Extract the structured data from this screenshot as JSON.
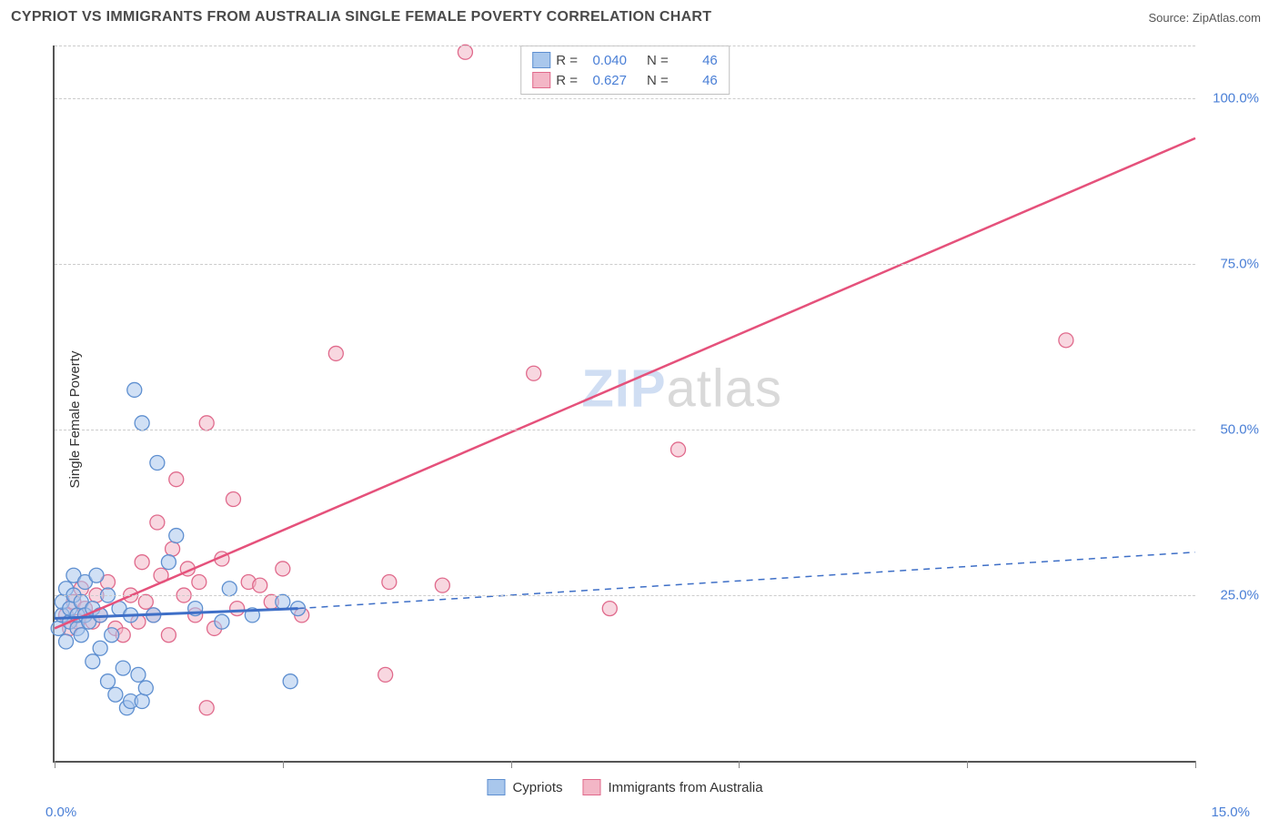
{
  "header": {
    "title": "CYPRIOT VS IMMIGRANTS FROM AUSTRALIA SINGLE FEMALE POVERTY CORRELATION CHART",
    "source_prefix": "Source: ",
    "source_name": "ZipAtlas.com"
  },
  "ylabel": "Single Female Poverty",
  "watermark": {
    "zip": "ZIP",
    "atlas": "atlas"
  },
  "axes": {
    "xlim": [
      0,
      15
    ],
    "ylim": [
      0,
      108
    ],
    "x_ticks": [
      0,
      3,
      6,
      9,
      12,
      15
    ],
    "x_tick_labels": {
      "0": "0.0%",
      "15": "15.0%"
    },
    "y_gridlines": [
      25,
      50,
      75,
      100
    ],
    "y_tick_labels": {
      "25": "25.0%",
      "50": "50.0%",
      "75": "75.0%",
      "100": "100.0%"
    },
    "grid_color": "#cccccc",
    "axis_color": "#555555"
  },
  "series": {
    "cypriots": {
      "label": "Cypriots",
      "fill": "#a9c7ec",
      "stroke": "#5e8fd0",
      "fill_opacity": 0.55,
      "line_color": "#3e6fc7",
      "marker_radius": 8,
      "r_value": "0.040",
      "n_value": "46",
      "trend": {
        "x1": 0,
        "y1": 21.5,
        "x2": 3.2,
        "y2": 23.0,
        "dash_x2": 15,
        "dash_y2": 31.5
      },
      "points": [
        [
          0.05,
          20
        ],
        [
          0.1,
          22
        ],
        [
          0.1,
          24
        ],
        [
          0.15,
          18
        ],
        [
          0.15,
          26
        ],
        [
          0.2,
          21
        ],
        [
          0.2,
          23
        ],
        [
          0.25,
          28
        ],
        [
          0.25,
          25
        ],
        [
          0.3,
          20
        ],
        [
          0.3,
          22
        ],
        [
          0.35,
          19
        ],
        [
          0.35,
          24
        ],
        [
          0.4,
          27
        ],
        [
          0.4,
          22
        ],
        [
          0.45,
          21
        ],
        [
          0.5,
          15
        ],
        [
          0.5,
          23
        ],
        [
          0.55,
          28
        ],
        [
          0.6,
          17
        ],
        [
          0.6,
          22
        ],
        [
          0.7,
          12
        ],
        [
          0.7,
          25
        ],
        [
          0.75,
          19
        ],
        [
          0.8,
          10
        ],
        [
          0.85,
          23
        ],
        [
          0.9,
          14
        ],
        [
          0.95,
          8
        ],
        [
          1.0,
          22
        ],
        [
          1.0,
          9
        ],
        [
          1.05,
          56
        ],
        [
          1.1,
          13
        ],
        [
          1.15,
          9
        ],
        [
          1.15,
          51
        ],
        [
          1.2,
          11
        ],
        [
          1.3,
          22
        ],
        [
          1.35,
          45
        ],
        [
          1.5,
          30
        ],
        [
          1.6,
          34
        ],
        [
          1.85,
          23
        ],
        [
          2.2,
          21
        ],
        [
          2.3,
          26
        ],
        [
          2.6,
          22
        ],
        [
          3.0,
          24
        ],
        [
          3.1,
          12
        ],
        [
          3.2,
          23
        ]
      ]
    },
    "immigrants": {
      "label": "Immigrants from Australia",
      "fill": "#f3b6c6",
      "stroke": "#e06a8c",
      "fill_opacity": 0.55,
      "line_color": "#e5517b",
      "marker_radius": 8,
      "r_value": "0.627",
      "n_value": "46",
      "trend": {
        "x1": 0,
        "y1": 20,
        "x2": 15,
        "y2": 94
      },
      "points": [
        [
          0.15,
          22
        ],
        [
          0.2,
          20
        ],
        [
          0.25,
          24
        ],
        [
          0.3,
          21
        ],
        [
          0.35,
          26
        ],
        [
          0.4,
          23
        ],
        [
          0.5,
          21
        ],
        [
          0.55,
          25
        ],
        [
          0.6,
          22
        ],
        [
          0.7,
          27
        ],
        [
          0.8,
          20
        ],
        [
          0.9,
          19
        ],
        [
          1.0,
          25
        ],
        [
          1.1,
          21
        ],
        [
          1.15,
          30
        ],
        [
          1.2,
          24
        ],
        [
          1.3,
          22
        ],
        [
          1.35,
          36
        ],
        [
          1.4,
          28
        ],
        [
          1.5,
          19
        ],
        [
          1.55,
          32
        ],
        [
          1.6,
          42.5
        ],
        [
          1.7,
          25
        ],
        [
          1.75,
          29
        ],
        [
          1.85,
          22
        ],
        [
          1.9,
          27
        ],
        [
          2.0,
          8
        ],
        [
          2.0,
          51
        ],
        [
          2.1,
          20
        ],
        [
          2.2,
          30.5
        ],
        [
          2.35,
          39.5
        ],
        [
          2.4,
          23
        ],
        [
          2.55,
          27
        ],
        [
          2.7,
          26.5
        ],
        [
          2.85,
          24
        ],
        [
          3.0,
          29
        ],
        [
          3.25,
          22
        ],
        [
          3.7,
          61.5
        ],
        [
          4.35,
          13
        ],
        [
          4.4,
          27
        ],
        [
          5.1,
          26.5
        ],
        [
          5.4,
          107
        ],
        [
          6.3,
          58.5
        ],
        [
          7.3,
          23
        ],
        [
          8.2,
          47
        ],
        [
          13.3,
          63.5
        ]
      ]
    }
  },
  "stats_labels": {
    "r": "R =",
    "n": "N ="
  },
  "colors": {
    "text_dark": "#4a4a4a",
    "text_blue": "#4a7fd6",
    "background": "#ffffff"
  }
}
